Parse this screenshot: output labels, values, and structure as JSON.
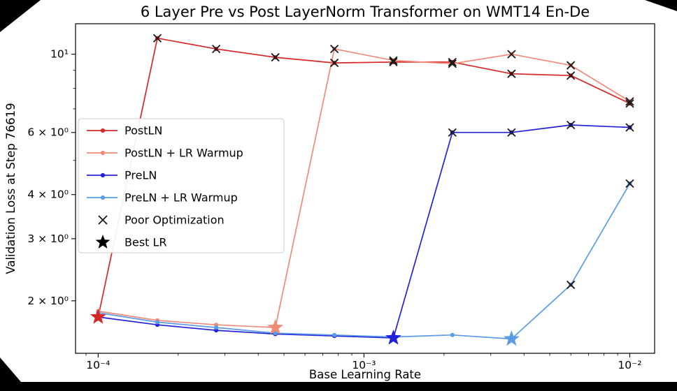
{
  "chart_data": {
    "type": "line",
    "title": "6 Layer Pre vs Post LayerNorm Transformer on WMT14 En-De",
    "xlabel": "Base Learning Rate",
    "ylabel": "Validation Loss at Step 76619",
    "xscale": "log",
    "yscale": "log",
    "xlim": [
      8.22e-05,
      0.0124
    ],
    "ylim": [
      1.42,
      12.2
    ],
    "x": [
      0.0001,
      0.000167,
      0.000278,
      0.000464,
      0.000774,
      0.00129,
      0.00215,
      0.00359,
      0.006,
      0.01
    ],
    "xticks": {
      "values": [
        0.0001,
        0.001,
        0.01
      ],
      "labels": [
        "10⁻⁴",
        "10⁻³",
        "10⁻²"
      ]
    },
    "yticks": {
      "values": [
        2,
        3,
        4,
        6,
        10
      ],
      "labels": [
        "2 × 10⁰",
        "3 × 10⁰",
        "4 × 10⁰",
        "6 × 10⁰",
        "10¹"
      ],
      "minor": [
        5,
        7,
        8,
        9
      ]
    },
    "series": [
      {
        "name": "PostLN",
        "color": "#d62728",
        "values": [
          1.8,
          11.1,
          10.35,
          9.8,
          9.45,
          9.5,
          9.5,
          8.8,
          8.7,
          7.25
        ],
        "poor_optimization_indices": [
          1,
          2,
          3,
          4,
          5,
          6,
          7,
          8,
          9
        ],
        "best_lr_index": 0
      },
      {
        "name": "PostLN + LR Warmup",
        "color": "#f08b7a",
        "values": [
          1.87,
          1.76,
          1.71,
          1.68,
          10.35,
          9.6,
          9.4,
          10.0,
          9.3,
          7.35
        ],
        "poor_optimization_indices": [
          4,
          5,
          6,
          7,
          8,
          9
        ],
        "best_lr_index": 3
      },
      {
        "name": "PreLN",
        "color": "#2222dd",
        "values": [
          1.8,
          1.71,
          1.65,
          1.61,
          1.59,
          1.57,
          6.0,
          6.0,
          6.3,
          6.2
        ],
        "poor_optimization_indices": [
          6,
          7,
          8,
          9
        ],
        "best_lr_index": 5
      },
      {
        "name": "PreLN + LR Warmup",
        "color": "#5b9ce4",
        "values": [
          1.85,
          1.74,
          1.68,
          1.62,
          1.6,
          1.58,
          1.6,
          1.56,
          2.22,
          4.3
        ],
        "poor_optimization_indices": [
          8,
          9
        ],
        "best_lr_index": 7
      }
    ],
    "markers": {
      "poor_optimization": {
        "label": "Poor Optimization",
        "symbol": "x",
        "color": "#1a1a1a"
      },
      "best_lr": {
        "label": "Best LR",
        "symbol": "star",
        "color": "#000000"
      }
    },
    "legend": {
      "position": "upper-left",
      "entries": [
        "PostLN",
        "PostLN + LR Warmup",
        "PreLN",
        "PreLN + LR Warmup",
        "Poor Optimization",
        "Best LR"
      ]
    }
  }
}
